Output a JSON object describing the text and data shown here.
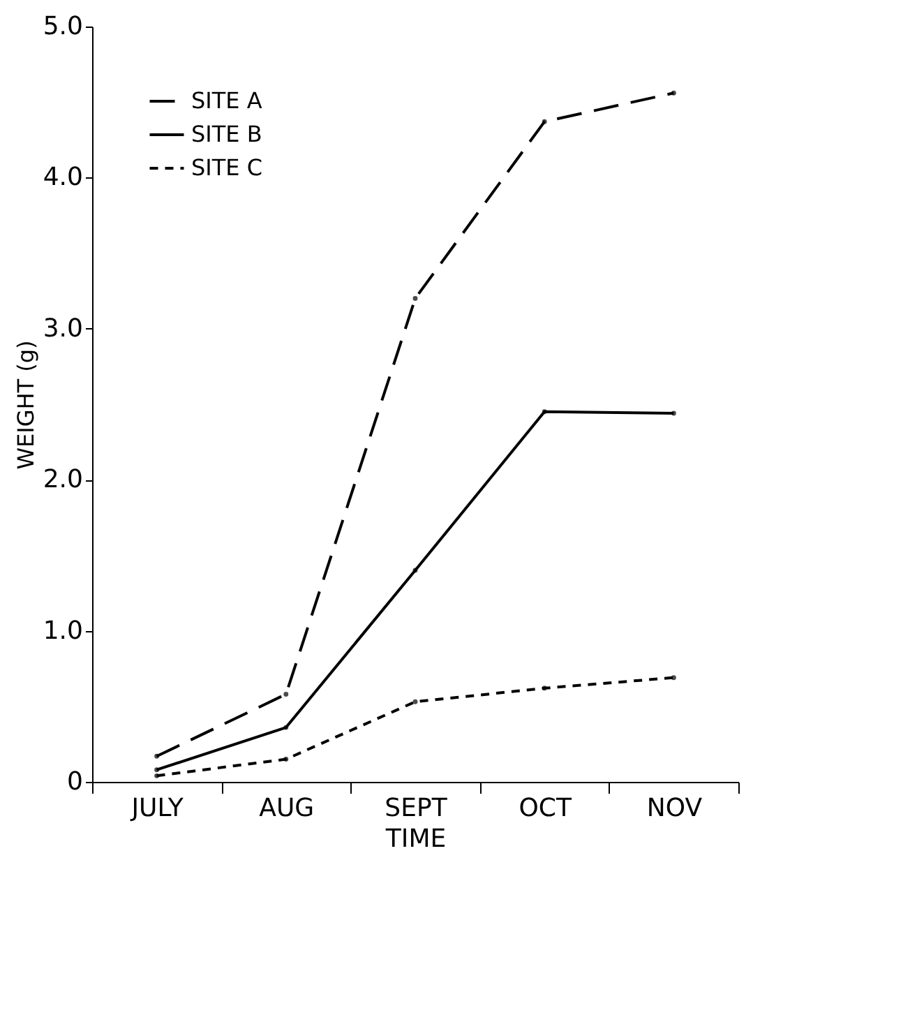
{
  "chart_data": {
    "type": "line",
    "xlabel": "TIME",
    "ylabel": "WEIGHT (g)",
    "categories": [
      "JULY",
      "AUG",
      "SEPT",
      "OCT",
      "NOV"
    ],
    "series": [
      {
        "name": "SITE A",
        "color": "#000000",
        "line_style": "dashed",
        "values": [
          0.17,
          0.58,
          3.2,
          4.37,
          4.56
        ]
      },
      {
        "name": "SITE B",
        "color": "#000000",
        "line_style": "solid",
        "values": [
          0.08,
          0.36,
          1.4,
          2.45,
          2.44
        ]
      },
      {
        "name": "SITE C",
        "color": "#000000",
        "line_style": "dotted",
        "values": [
          0.04,
          0.15,
          0.53,
          0.62,
          0.69
        ]
      }
    ],
    "ylim": [
      0,
      5
    ],
    "yticks": [
      0,
      {
        "value": 1,
        "label": "1.0"
      },
      {
        "value": 2,
        "label": "2.0"
      },
      {
        "value": 3,
        "label": "3.0"
      },
      {
        "value": 4,
        "label": "4.0"
      },
      {
        "value": 5,
        "label": "5.0"
      }
    ],
    "marker": "circle",
    "grid": false,
    "legend": "top left"
  }
}
